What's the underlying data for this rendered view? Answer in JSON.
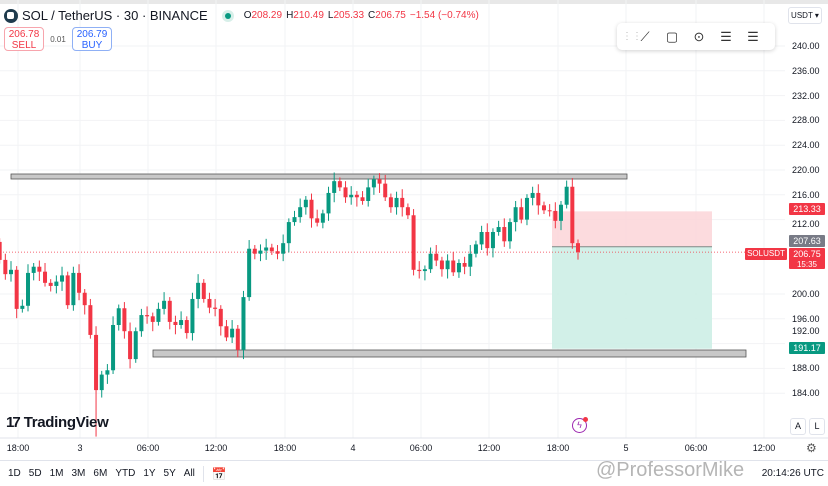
{
  "header": {
    "symbol_title": "SOL / TetherUS · 30 · BINANCE",
    "ohlc": {
      "o_label": "O",
      "o": "208.29",
      "h_label": "H",
      "h": "210.49",
      "l_label": "L",
      "l": "205.33",
      "c_label": "C",
      "c": "206.75",
      "change": "−1.54 (−0.74%)"
    },
    "sell_price": "206.78",
    "sell_label": "SELL",
    "spread": "0.01",
    "buy_price": "206.79",
    "buy_label": "BUY"
  },
  "currency_selector": "USDT",
  "drawing_toolbar": [
    "grip-icon",
    "trend-line-icon",
    "rectangle-icon",
    "circle-icon",
    "long-position-icon",
    "short-position-icon"
  ],
  "price_labels": {
    "stop": "213.33",
    "entry": "207.63",
    "symbol": "SOLUSDT",
    "last": "206.75",
    "countdown": "15:35",
    "target": "191.17"
  },
  "branding": "TradingView",
  "axis_buttons": {
    "auto": "A",
    "log": "L"
  },
  "ranges": [
    "1D",
    "5D",
    "1M",
    "3M",
    "6M",
    "YTD",
    "1Y",
    "5Y",
    "All"
  ],
  "clock": "20:14:26 UTC",
  "watermark": "@ProfessorMike",
  "colors": {
    "up": "#089981",
    "down": "#f23645",
    "zone": "#c8c8c8",
    "profit": "#cdeee6",
    "loss": "#fbd5d8",
    "neutral": "#808080"
  },
  "chart_data": {
    "type": "candlestick",
    "interval": "30",
    "y_ticks": [
      "240.00",
      "236.00",
      "232.00",
      "228.00",
      "224.00",
      "220.00",
      "216.00",
      "212.00",
      "200.00",
      "196.00",
      "192.00",
      "188.00",
      "184.00"
    ],
    "x_ticks": [
      "18:00",
      "3",
      "06:00",
      "12:00",
      "18:00",
      "4",
      "06:00",
      "12:00",
      "18:00",
      "5",
      "06:00",
      "12:00"
    ],
    "ylim": [
      178,
      242
    ],
    "first_open": 208.4,
    "closes": [
      205.5,
      203.2,
      203.9,
      197.6,
      198.1,
      203.4,
      204.4,
      203.6,
      201.8,
      201.3,
      202.0,
      203.0,
      198.2,
      203.4,
      200.2,
      198.2,
      193.4,
      184.5,
      187.0,
      187.7,
      195.0,
      197.7,
      194.0,
      189.5,
      194.0,
      196.6,
      196.4,
      195.5,
      197.6,
      198.9,
      195.5,
      195.0,
      195.8,
      193.7,
      199.2,
      201.8,
      199.2,
      197.8,
      197.6,
      194.8,
      193.0,
      194.4,
      191.0,
      199.5,
      207.3,
      206.5,
      207.0,
      207.5,
      206.9,
      206.5,
      208.2,
      211.6,
      212.4,
      214.0,
      215.2,
      212.2,
      211.5,
      213.0,
      216.3,
      218.2,
      217.2,
      215.6,
      216.0,
      215.6,
      215.0,
      217.2,
      218.5,
      217.8,
      215.6,
      214.0,
      215.5,
      214.0,
      212.7,
      203.9,
      203.7,
      204.0,
      206.5,
      205.4,
      204.0,
      205.4,
      203.5,
      205.0,
      204.4,
      206.5,
      208.0,
      210.0,
      207.4,
      210.0,
      210.8,
      208.5,
      211.6,
      214.0,
      212.0,
      215.5,
      216.3,
      214.3,
      213.5,
      213.4,
      211.8,
      214.4,
      217.3,
      208.2,
      206.75
    ],
    "resistance_zone": [
      218.6,
      219.4
    ],
    "support_zone": [
      190.2,
      191.2
    ],
    "long_position": {
      "entry": 207.63,
      "stop": 213.33,
      "target": 191.17
    },
    "last_price": 206.75
  }
}
